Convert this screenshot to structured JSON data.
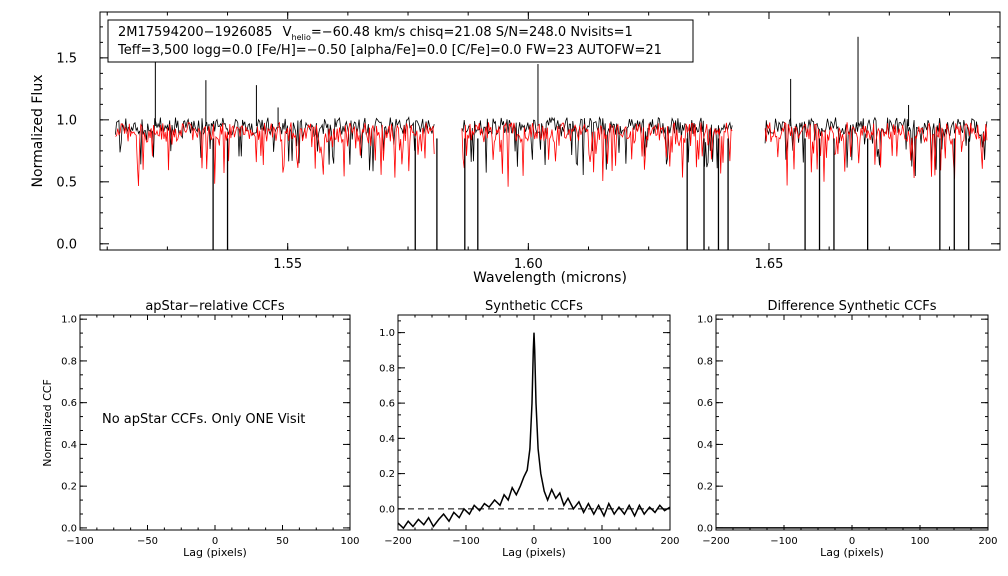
{
  "chart_data": [
    {
      "type": "line",
      "id": "spectrum",
      "xlabel": "Wavelength (microns)",
      "ylabel": "Normalized Flux",
      "xlim": [
        1.511,
        1.698
      ],
      "ylim": [
        -0.05,
        1.87
      ],
      "xticks": [
        1.55,
        1.6,
        1.65
      ],
      "xtick_labels": [
        "1.55",
        "1.60",
        "1.65"
      ],
      "yticks": [
        0.0,
        0.5,
        1.0,
        1.5
      ],
      "ytick_labels": [
        "0.0",
        "0.5",
        "1.0",
        "1.5"
      ],
      "info_box": {
        "line1_id": "2M17594200−1926085",
        "line1_v": "V",
        "line1_v_sub": "helio",
        "line1_rest": "=−60.48 km/s  chisq=21.08  S/N=248.0  Nvisits=1",
        "line2": "Teff=3,500 logg=0.0 [Fe/H]=−0.50 [alpha/Fe]=0.0 [C/Fe]=0.0 FW=23 AUTOFW=21"
      },
      "chips": [
        [
          1.5142,
          1.5805
        ],
        [
          1.5862,
          1.6425
        ],
        [
          1.6492,
          1.6955
        ]
      ],
      "series": [
        {
          "name": "observed",
          "color": "#000000",
          "approx_level": 0.95
        },
        {
          "name": "model",
          "color": "#ff0000",
          "approx_level": 0.9
        }
      ],
      "emission_spikes": [
        [
          1.5225,
          1.55
        ],
        [
          1.533,
          1.32
        ],
        [
          1.5435,
          1.28
        ],
        [
          1.548,
          1.1
        ],
        [
          1.602,
          1.45
        ],
        [
          1.6545,
          1.33
        ],
        [
          1.6685,
          1.67
        ],
        [
          1.679,
          1.12
        ]
      ],
      "absorption_drops": [
        1.5345,
        1.5375,
        1.5765,
        1.581,
        1.5868,
        1.5895,
        1.633,
        1.6365,
        1.6395,
        1.6415,
        1.6575,
        1.6605,
        1.6635,
        1.6705,
        1.6855,
        1.6885,
        1.6915
      ]
    },
    {
      "type": "line",
      "id": "apstar_ccf",
      "title": "apStar−relative CCFs",
      "xlabel": "Lag (pixels)",
      "ylabel": "Normalized CCF",
      "xlim": [
        -100,
        100
      ],
      "ylim": [
        -0.01,
        1.02
      ],
      "xticks": [
        -100,
        -50,
        0,
        50,
        100
      ],
      "xtick_labels": [
        "−100",
        "−50",
        "0",
        "50",
        "100"
      ],
      "yticks": [
        0.0,
        0.2,
        0.4,
        0.6,
        0.8,
        1.0
      ],
      "ytick_labels": [
        "0.0",
        "0.2",
        "0.4",
        "0.6",
        "0.8",
        "1.0"
      ],
      "annotation": "No apStar CCFs.  Only ONE Visit",
      "series": []
    },
    {
      "type": "line",
      "id": "synthetic_ccf",
      "title": "Synthetic CCFs",
      "xlabel": "Lag (pixels)",
      "ylabel": "",
      "xlim": [
        -200,
        200
      ],
      "ylim": [
        -0.12,
        1.1
      ],
      "xticks": [
        -200,
        -100,
        0,
        100,
        200
      ],
      "xtick_labels": [
        "−200",
        "−100",
        "0",
        "100",
        "200"
      ],
      "yticks": [
        0.0,
        0.2,
        0.4,
        0.6,
        0.8,
        1.0
      ],
      "ytick_labels": [
        "0.0",
        "0.2",
        "0.4",
        "0.6",
        "0.8",
        "1.0"
      ],
      "zero_line": "dashed",
      "series": [
        {
          "name": "synthetic ccf",
          "color": "#000000",
          "x": [
            -200,
            -192,
            -185,
            -178,
            -170,
            -162,
            -155,
            -148,
            -140,
            -133,
            -125,
            -118,
            -110,
            -103,
            -95,
            -88,
            -80,
            -73,
            -66,
            -58,
            -50,
            -44,
            -38,
            -32,
            -26,
            -20,
            -15,
            -10,
            -6,
            -3,
            -1,
            0,
            1,
            3,
            6,
            10,
            15,
            20,
            26,
            32,
            38,
            44,
            50,
            58,
            66,
            73,
            80,
            88,
            95,
            103,
            110,
            118,
            125,
            133,
            140,
            148,
            155,
            162,
            170,
            178,
            185,
            192,
            200
          ],
          "values": [
            -0.08,
            -0.11,
            -0.07,
            -0.1,
            -0.06,
            -0.09,
            -0.05,
            -0.1,
            -0.06,
            -0.03,
            -0.07,
            -0.02,
            -0.05,
            0.0,
            -0.03,
            0.02,
            -0.01,
            0.03,
            0.01,
            0.05,
            0.02,
            0.08,
            0.05,
            0.12,
            0.08,
            0.13,
            0.18,
            0.22,
            0.34,
            0.6,
            0.9,
            1.0,
            0.9,
            0.6,
            0.34,
            0.2,
            0.1,
            0.05,
            0.11,
            0.06,
            0.09,
            0.02,
            0.06,
            0.0,
            0.04,
            -0.02,
            0.03,
            -0.03,
            0.02,
            -0.04,
            0.03,
            -0.03,
            0.01,
            -0.03,
            0.02,
            -0.04,
            0.02,
            -0.03,
            0.01,
            -0.02,
            0.02,
            -0.01,
            0.01
          ]
        }
      ]
    },
    {
      "type": "line",
      "id": "difference_ccf",
      "title": "Difference Synthetic CCFs",
      "xlabel": "Lag (pixels)",
      "ylabel": "",
      "xlim": [
        -200,
        200
      ],
      "ylim": [
        -0.01,
        1.02
      ],
      "xticks": [
        -200,
        -100,
        0,
        100,
        200
      ],
      "xtick_labels": [
        "−200",
        "−100",
        "0",
        "100",
        "200"
      ],
      "yticks": [
        0.0,
        0.2,
        0.4,
        0.6,
        0.8,
        1.0
      ],
      "ytick_labels": [
        "0.0",
        "0.2",
        "0.4",
        "0.6",
        "0.8",
        "1.0"
      ],
      "series": [
        {
          "name": "difference ccf",
          "color": "#000000",
          "x": [
            -200,
            200
          ],
          "values": [
            0.0,
            0.0
          ]
        }
      ]
    }
  ]
}
